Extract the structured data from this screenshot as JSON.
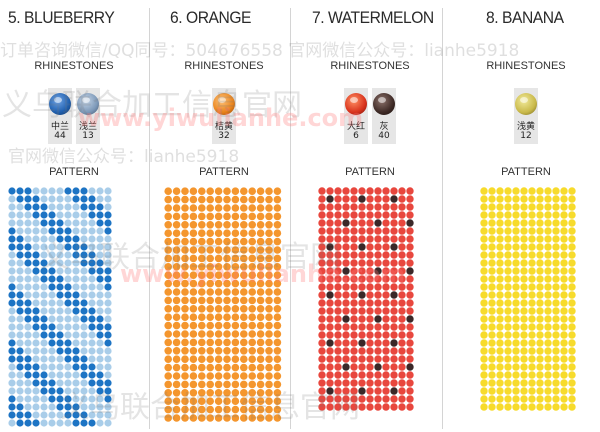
{
  "panels": [
    {
      "title": "5. BLUEBERRY",
      "rhinestones_label": "RHINESTONES",
      "pattern_label": "PATTERN",
      "stones": [
        {
          "name": "中兰",
          "code": "44",
          "color": "#1f5fae"
        },
        {
          "name": "浅兰",
          "code": "13",
          "color": "#7c98b8"
        }
      ],
      "pattern": {
        "base": "#a9cde9",
        "accent": "#1d74c4",
        "style": "diagonal-stripes"
      }
    },
    {
      "title": "6. ORANGE",
      "rhinestones_label": "RHINESTONES",
      "pattern_label": "PATTERN",
      "stones": [
        {
          "name": "桔黄",
          "code": "32",
          "color": "#e8821a"
        }
      ],
      "pattern": {
        "base": "#f4962e",
        "accent": "#f4962e",
        "style": "solid"
      }
    },
    {
      "title": "7. WATERMELON",
      "rhinestones_label": "RHINESTONES",
      "pattern_label": "PATTERN",
      "stones": [
        {
          "name": "大红",
          "code": "6",
          "color": "#d8321c"
        },
        {
          "name": "灰",
          "code": "40",
          "color": "#3e2a26"
        }
      ],
      "pattern": {
        "base": "#e8473e",
        "accent": "#3b2828",
        "style": "polka-dots"
      }
    },
    {
      "title": "8. BANANA",
      "rhinestones_label": "RHINESTONES",
      "pattern_label": "PATTERN",
      "stones": [
        {
          "name": "浅黄",
          "code": "12",
          "color": "#c9b94a"
        }
      ],
      "pattern": {
        "base": "#f7db2c",
        "accent": "#f7db2c",
        "style": "solid"
      }
    }
  ],
  "watermarks": {
    "line1": "订单咨询微信/QQ同号：504676558 官网微信公众号：lianhe5918",
    "line2": "义乌联合加工信息官网",
    "line3": "www.yiwulianhe.com",
    "line4": "官网微信公众号：lianhe5918"
  }
}
